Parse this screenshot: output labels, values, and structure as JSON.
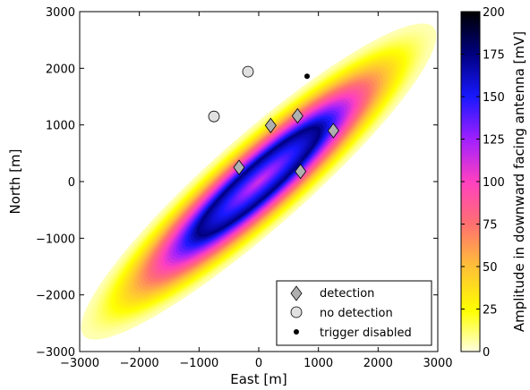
{
  "chart_data": {
    "type": "heatmap",
    "title": "",
    "xlabel": "East [m]",
    "ylabel": "North [m]",
    "xlim": [
      -3000,
      3000
    ],
    "ylim": [
      -3000,
      3000
    ],
    "x_ticks": [
      "−3000",
      "−2000",
      "−1000",
      "0",
      "1000",
      "2000",
      "3000"
    ],
    "y_ticks": [
      "−3000",
      "−2000",
      "−1000",
      "0",
      "1000",
      "2000",
      "3000"
    ],
    "grid": false,
    "heatmap": {
      "shape": "elongated ellipse footprint",
      "center": [
        0,
        0
      ],
      "major_axis_angle_deg": 43,
      "semi_major_m": 4000,
      "semi_minor_m": 800,
      "ring_peak_mV": 175,
      "center_mV": 110,
      "edge_mV": 5
    },
    "colorbar": {
      "label": "Amplitude in downward facing antenna [mV]",
      "range": [
        0,
        200
      ],
      "ticks": [
        "0",
        "25",
        "50",
        "75",
        "100",
        "125",
        "150",
        "175",
        "200"
      ],
      "colors": [
        "#ffffe0",
        "#ffff00",
        "#ffc038",
        "#ff7070",
        "#ff40c0",
        "#a020ff",
        "#1818ff",
        "#000080",
        "#000000"
      ]
    },
    "series": [
      {
        "name": "detection",
        "marker": "diamond",
        "color": "#b0b0b0",
        "points": [
          [
            -330,
            250
          ],
          [
            200,
            990
          ],
          [
            650,
            1160
          ],
          [
            1250,
            900
          ],
          [
            700,
            180
          ]
        ]
      },
      {
        "name": "no detection",
        "marker": "circle",
        "color": "#e0e0e0",
        "points": [
          [
            -180,
            1940
          ],
          [
            -750,
            1150
          ]
        ]
      },
      {
        "name": "trigger disabled",
        "marker": "dot",
        "color": "#000000",
        "points": [
          [
            810,
            1860
          ]
        ]
      }
    ],
    "legend": {
      "placement": "lower-right",
      "entries": [
        "detection",
        "no detection",
        "trigger disabled"
      ]
    }
  }
}
